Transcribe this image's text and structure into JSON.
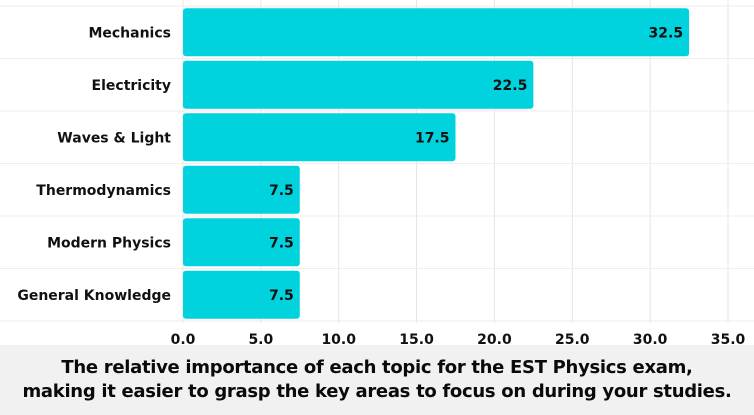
{
  "chart_data": {
    "type": "bar",
    "orientation": "horizontal",
    "categories": [
      "Mechanics",
      "Electricity",
      "Waves & Light",
      "Thermodynamics",
      "Modern Physics",
      "General Knowledge"
    ],
    "values": [
      32.5,
      22.5,
      17.5,
      7.5,
      7.5,
      7.5
    ],
    "data_labels": [
      "32.5",
      "22.5",
      "17.5",
      "7.5",
      "7.5",
      "7.5"
    ],
    "x_ticks": [
      "0.0",
      "5.0",
      "10.0",
      "15.0",
      "20.0",
      "25.0",
      "30.0",
      "35.0"
    ],
    "xlim": [
      0,
      35
    ],
    "bar_color": "#00d2de",
    "grid": true,
    "legend": "none"
  },
  "caption": {
    "line1": "The relative importance of each topic for the EST Physics exam,",
    "line2": "making it easier to grasp the key areas to focus on during your studies."
  }
}
